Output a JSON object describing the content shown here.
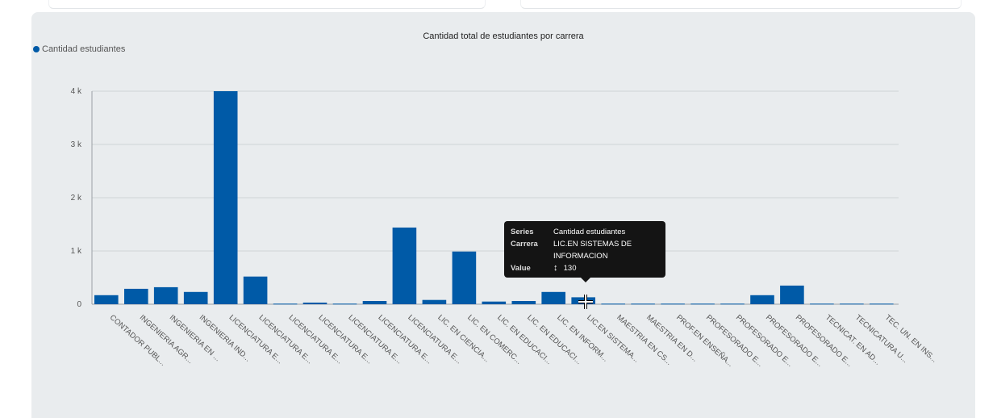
{
  "chart_data": {
    "type": "bar",
    "title": "Cantidad total de estudiantes por carrera",
    "xlabel": "",
    "ylabel": "",
    "ylim": [
      0,
      4000
    ],
    "yticks": [
      0,
      1000,
      2000,
      3000,
      4000
    ],
    "ytick_labels": [
      "0",
      "1 k",
      "2 k",
      "3 k",
      "4 k"
    ],
    "grid": true,
    "legend": "top-left",
    "series": [
      {
        "name": "Cantidad estudiantes",
        "color": "#005aa7",
        "values": [
          170,
          290,
          320,
          230,
          4000,
          520,
          10,
          30,
          10,
          60,
          1440,
          80,
          990,
          50,
          60,
          230,
          130,
          10,
          10,
          10,
          10,
          10,
          170,
          350,
          10,
          10,
          10
        ]
      }
    ],
    "categories": [
      "CONTADOR PUBL...",
      "INGENIERIA AGR...",
      "INGENIERIA EN ...",
      "INGENIERIA IND...",
      "LICENCIATURA E...",
      "LICENCIATURA E...",
      "LICENCIATURA E...",
      "LICENCIATURA E...",
      "LICENCIATURA E...",
      "LICENCIATURA E...",
      "LICENCIATURA E...",
      "LIC. EN CIENCIA...",
      "LIC. EN COMERC...",
      "LIC. EN EDUCACI...",
      "LIC. EN EDUCACI...",
      "LIC. EN INFORM...",
      "LIC.EN SISTEMA...",
      "MAESTRIA EN CS...",
      "MAESTRIA EN D...",
      "PROF.EN ENSEÑA...",
      "PROFESORADO E...",
      "PROFESORADO E...",
      "PROFESORADO E...",
      "PROFESORADO E...",
      "TECNICAT. EN AD...",
      "TECNICATURA U...",
      "TEC. UN. EN INS..."
    ]
  },
  "tooltip": {
    "series_label": "Series",
    "series_value": "Cantidad estudiantes",
    "category_label": "Carrera",
    "category_value": "LIC.EN SISTEMAS DE INFORMACION",
    "value_label": "Value",
    "value_value": "130",
    "active_index": 16
  },
  "icons": {
    "value_arrow": "vertical-arrows-icon",
    "cursor": "crosshair-cursor-icon"
  }
}
